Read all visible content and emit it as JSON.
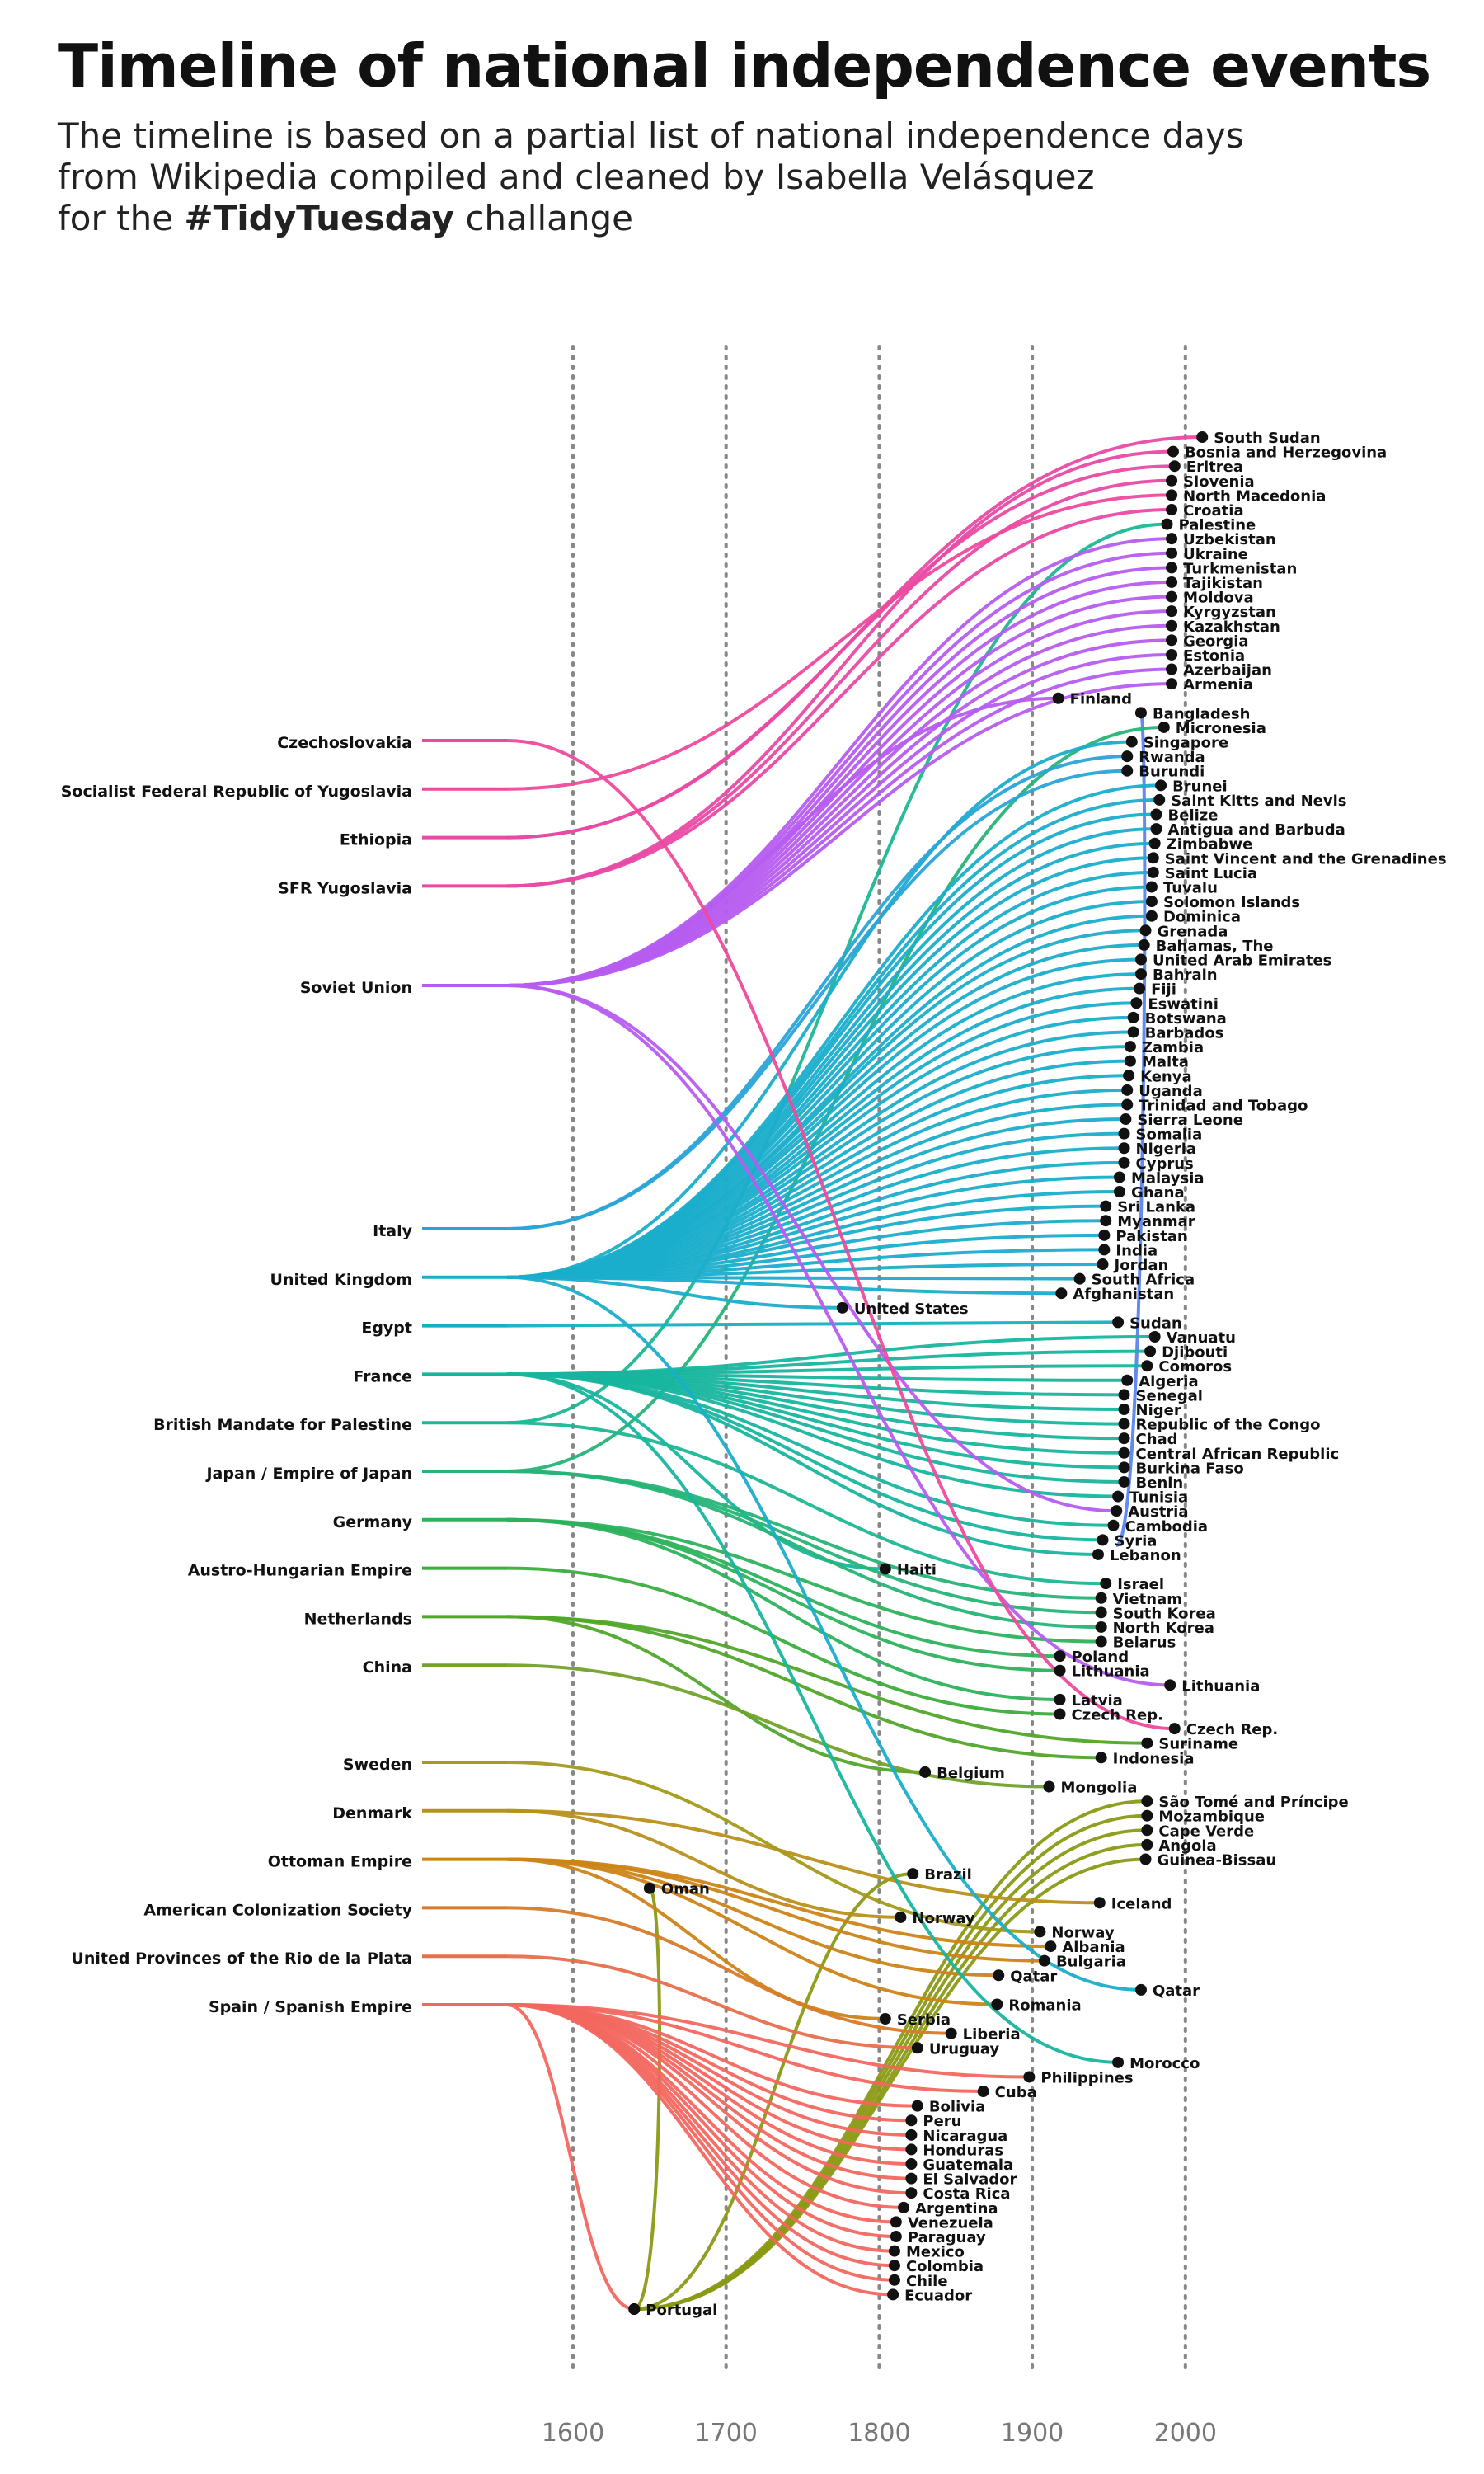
{
  "header": {
    "title": "Timeline of national independence events",
    "subtitle_lines": [
      "The timeline is based on a partial list of national independence days",
      "from Wikipedia compiled and cleaned by Isabella Velásquez",
      "for the ",
      "#TidyTuesday",
      " challange"
    ]
  },
  "chart_data": {
    "type": "line",
    "title": "Timeline of national independence events",
    "xlabel": "",
    "ylabel": "",
    "xlim": [
      1530,
      2060
    ],
    "x_ticks": [
      1600,
      1700,
      1800,
      1900,
      2000
    ],
    "grid": "dotted vertical at ticks",
    "colors": {
      "Czechoslovakia": "#ee4a9c",
      "Socialist Federal Republic of Yugoslavia": "#ee4a9c",
      "Ethiopia": "#e94aa4",
      "SFR Yugoslavia": "#e94aa4",
      "Soviet Union": "#b65cf0",
      "Italy": "#2aa4d8",
      "United Kingdom": "#1aaecb",
      "Egypt": "#14b2c0",
      "France": "#17b59e",
      "British Mandate for Palestine": "#1db793",
      "Japan / Empire of Japan": "#26b477",
      "Germany": "#2cb25c",
      "Austro-Hungarian Empire": "#3aae3c",
      "Netherlands": "#50a62a",
      "China": "#72a22a",
      "Sweden": "#a59a1a",
      "Denmark": "#b8901a",
      "Ottoman Empire": "#cc8418",
      "American Colonization Society": "#d97a28",
      "United Provinces of the Rio de la Plata": "#e66f4c",
      "Spain / Spanish Empire": "#f2675f",
      "Portugal": "#8a9a14",
      "Oman": "#8a9a14",
      "Finland": "#b65cf0",
      "Bangladesh": "#5b84ee",
      "Sudan": "#1aaecb",
      "Austria": "#5b84ee"
    },
    "origins": [
      "Czechoslovakia",
      "Socialist Federal Republic of Yugoslavia",
      "Ethiopia",
      "SFR Yugoslavia",
      "Soviet Union",
      "Italy",
      "United Kingdom",
      "Egypt",
      "France",
      "British Mandate for Palestine",
      "Japan / Empire of Japan",
      "Germany",
      "Austro-Hungarian Empire",
      "Netherlands",
      "China",
      "Sweden",
      "Denmark",
      "Ottoman Empire",
      "American Colonization Society",
      "United Provinces of the Rio de la Plata",
      "Spain / Spanish Empire"
    ],
    "points": [
      {
        "country": "South Sudan",
        "year": 2011,
        "from": "Ethiopia"
      },
      {
        "country": "Bosnia and Herzegovina",
        "year": 1992,
        "from": "SFR Yugoslavia"
      },
      {
        "country": "Eritrea",
        "year": 1993,
        "from": "Ethiopia"
      },
      {
        "country": "Slovenia",
        "year": 1991,
        "from": "SFR Yugoslavia"
      },
      {
        "country": "North Macedonia",
        "year": 1991,
        "from": "Socialist Federal Republic of Yugoslavia"
      },
      {
        "country": "Croatia",
        "year": 1991,
        "from": "SFR Yugoslavia"
      },
      {
        "country": "Palestine",
        "year": 1988,
        "from": "British Mandate for Palestine"
      },
      {
        "country": "Uzbekistan",
        "year": 1991,
        "from": "Soviet Union"
      },
      {
        "country": "Ukraine",
        "year": 1991,
        "from": "Soviet Union"
      },
      {
        "country": "Turkmenistan",
        "year": 1991,
        "from": "Soviet Union"
      },
      {
        "country": "Tajikistan",
        "year": 1991,
        "from": "Soviet Union"
      },
      {
        "country": "Moldova",
        "year": 1991,
        "from": "Soviet Union"
      },
      {
        "country": "Kyrgyzstan",
        "year": 1991,
        "from": "Soviet Union"
      },
      {
        "country": "Kazakhstan",
        "year": 1991,
        "from": "Soviet Union"
      },
      {
        "country": "Georgia",
        "year": 1991,
        "from": "Soviet Union"
      },
      {
        "country": "Estonia",
        "year": 1991,
        "from": "Soviet Union"
      },
      {
        "country": "Azerbaijan",
        "year": 1991,
        "from": "Soviet Union"
      },
      {
        "country": "Armenia",
        "year": 1991,
        "from": "Soviet Union"
      },
      {
        "country": "Finland",
        "year": 1917,
        "from": "Soviet Union"
      },
      {
        "country": "Bangladesh",
        "year": 1971,
        "from": "Austria"
      },
      {
        "country": "Micronesia",
        "year": 1986,
        "from": "Japan / Empire of Japan"
      },
      {
        "country": "Singapore",
        "year": 1965,
        "from": "United Kingdom"
      },
      {
        "country": "Rwanda",
        "year": 1962,
        "from": "Italy"
      },
      {
        "country": "Burundi",
        "year": 1962,
        "from": "Italy"
      },
      {
        "country": "Brunei",
        "year": 1984,
        "from": "United Kingdom"
      },
      {
        "country": "Saint Kitts and Nevis",
        "year": 1983,
        "from": "United Kingdom"
      },
      {
        "country": "Belize",
        "year": 1981,
        "from": "United Kingdom"
      },
      {
        "country": "Antigua and Barbuda",
        "year": 1981,
        "from": "United Kingdom"
      },
      {
        "country": "Zimbabwe",
        "year": 1980,
        "from": "United Kingdom"
      },
      {
        "country": "Saint Vincent and the Grenadines",
        "year": 1979,
        "from": "United Kingdom"
      },
      {
        "country": "Saint Lucia",
        "year": 1979,
        "from": "United Kingdom"
      },
      {
        "country": "Tuvalu",
        "year": 1978,
        "from": "United Kingdom"
      },
      {
        "country": "Solomon Islands",
        "year": 1978,
        "from": "United Kingdom"
      },
      {
        "country": "Dominica",
        "year": 1978,
        "from": "United Kingdom"
      },
      {
        "country": "Grenada",
        "year": 1974,
        "from": "United Kingdom"
      },
      {
        "country": "Bahamas, The",
        "year": 1973,
        "from": "United Kingdom"
      },
      {
        "country": "United Arab Emirates",
        "year": 1971,
        "from": "United Kingdom"
      },
      {
        "country": "Bahrain",
        "year": 1971,
        "from": "United Kingdom"
      },
      {
        "country": "Fiji",
        "year": 1970,
        "from": "United Kingdom"
      },
      {
        "country": "Eswatini",
        "year": 1968,
        "from": "United Kingdom"
      },
      {
        "country": "Botswana",
        "year": 1966,
        "from": "United Kingdom"
      },
      {
        "country": "Barbados",
        "year": 1966,
        "from": "United Kingdom"
      },
      {
        "country": "Zambia",
        "year": 1964,
        "from": "United Kingdom"
      },
      {
        "country": "Malta",
        "year": 1964,
        "from": "United Kingdom"
      },
      {
        "country": "Kenya",
        "year": 1963,
        "from": "United Kingdom"
      },
      {
        "country": "Uganda",
        "year": 1962,
        "from": "United Kingdom"
      },
      {
        "country": "Trinidad and Tobago",
        "year": 1962,
        "from": "United Kingdom"
      },
      {
        "country": "Sierra Leone",
        "year": 1961,
        "from": "United Kingdom"
      },
      {
        "country": "Somalia",
        "year": 1960,
        "from": "United Kingdom"
      },
      {
        "country": "Nigeria",
        "year": 1960,
        "from": "United Kingdom"
      },
      {
        "country": "Cyprus",
        "year": 1960,
        "from": "United Kingdom"
      },
      {
        "country": "Malaysia",
        "year": 1957,
        "from": "United Kingdom"
      },
      {
        "country": "Ghana",
        "year": 1957,
        "from": "United Kingdom"
      },
      {
        "country": "Sri Lanka",
        "year": 1948,
        "from": "United Kingdom"
      },
      {
        "country": "Myanmar",
        "year": 1948,
        "from": "United Kingdom"
      },
      {
        "country": "Pakistan",
        "year": 1947,
        "from": "United Kingdom"
      },
      {
        "country": "India",
        "year": 1947,
        "from": "United Kingdom"
      },
      {
        "country": "Jordan",
        "year": 1946,
        "from": "United Kingdom"
      },
      {
        "country": "South Africa",
        "year": 1931,
        "from": "United Kingdom"
      },
      {
        "country": "Afghanistan",
        "year": 1919,
        "from": "United Kingdom"
      },
      {
        "country": "United States",
        "year": 1776,
        "from": "United Kingdom"
      },
      {
        "country": "Sudan",
        "year": 1956,
        "from": "Egypt"
      },
      {
        "country": "Vanuatu",
        "year": 1980,
        "from": "France"
      },
      {
        "country": "Djibouti",
        "year": 1977,
        "from": "France"
      },
      {
        "country": "Comoros",
        "year": 1975,
        "from": "France"
      },
      {
        "country": "Algeria",
        "year": 1962,
        "from": "France"
      },
      {
        "country": "Senegal",
        "year": 1960,
        "from": "France"
      },
      {
        "country": "Niger",
        "year": 1960,
        "from": "France"
      },
      {
        "country": "Republic of the Congo",
        "year": 1960,
        "from": "France"
      },
      {
        "country": "Chad",
        "year": 1960,
        "from": "France"
      },
      {
        "country": "Central African Republic",
        "year": 1960,
        "from": "France"
      },
      {
        "country": "Burkina Faso",
        "year": 1960,
        "from": "France"
      },
      {
        "country": "Benin",
        "year": 1960,
        "from": "France"
      },
      {
        "country": "Tunisia",
        "year": 1956,
        "from": "France"
      },
      {
        "country": "Austria",
        "year": 1955,
        "from": "Soviet Union"
      },
      {
        "country": "Cambodia",
        "year": 1953,
        "from": "France"
      },
      {
        "country": "Syria",
        "year": 1946,
        "from": "France"
      },
      {
        "country": "Lebanon",
        "year": 1943,
        "from": "France"
      },
      {
        "country": "Haiti",
        "year": 1804,
        "from": "France"
      },
      {
        "country": "Israel",
        "year": 1948,
        "from": "British Mandate for Palestine"
      },
      {
        "country": "Vietnam",
        "year": 1945,
        "from": "Japan / Empire of Japan"
      },
      {
        "country": "South Korea",
        "year": 1945,
        "from": "Japan / Empire of Japan"
      },
      {
        "country": "North Korea",
        "year": 1945,
        "from": "Japan / Empire of Japan"
      },
      {
        "country": "Belarus",
        "year": 1945,
        "from": "Germany"
      },
      {
        "country": "Poland",
        "year": 1918,
        "from": "Germany"
      },
      {
        "country": "Lithuania",
        "year": 1918,
        "from": "Germany"
      },
      {
        "country": "Lithuania",
        "year": 1990,
        "from": "Soviet Union"
      },
      {
        "country": "Latvia",
        "year": 1918,
        "from": "Germany"
      },
      {
        "country": "Czech Rep.",
        "year": 1918,
        "from": "Austro-Hungarian Empire"
      },
      {
        "country": "Czech Rep.",
        "year": 1993,
        "from": "Czechoslovakia"
      },
      {
        "country": "Suriname",
        "year": 1975,
        "from": "Netherlands"
      },
      {
        "country": "Indonesia",
        "year": 1945,
        "from": "Netherlands"
      },
      {
        "country": "Belgium",
        "year": 1830,
        "from": "Netherlands"
      },
      {
        "country": "Mongolia",
        "year": 1911,
        "from": "China"
      },
      {
        "country": "São Tomé and Príncipe",
        "year": 1975,
        "from": "Portugal"
      },
      {
        "country": "Mozambique",
        "year": 1975,
        "from": "Portugal"
      },
      {
        "country": "Cape Verde",
        "year": 1975,
        "from": "Portugal"
      },
      {
        "country": "Angola",
        "year": 1975,
        "from": "Portugal"
      },
      {
        "country": "Guinea-Bissau",
        "year": 1974,
        "from": "Portugal"
      },
      {
        "country": "Brazil",
        "year": 1822,
        "from": "Portugal"
      },
      {
        "country": "Oman",
        "year": 1650,
        "from": "Portugal"
      },
      {
        "country": "Iceland",
        "year": 1944,
        "from": "Denmark"
      },
      {
        "country": "Norway",
        "year": 1814,
        "from": "Denmark"
      },
      {
        "country": "Norway",
        "year": 1905,
        "from": "Sweden"
      },
      {
        "country": "Albania",
        "year": 1912,
        "from": "Ottoman Empire"
      },
      {
        "country": "Bulgaria",
        "year": 1908,
        "from": "Ottoman Empire"
      },
      {
        "country": "Qatar",
        "year": 1878,
        "from": "Ottoman Empire"
      },
      {
        "country": "Qatar",
        "year": 1971,
        "from": "United Kingdom"
      },
      {
        "country": "Romania",
        "year": 1877,
        "from": "Ottoman Empire"
      },
      {
        "country": "Serbia",
        "year": 1804,
        "from": "Ottoman Empire"
      },
      {
        "country": "Liberia",
        "year": 1847,
        "from": "American Colonization Society"
      },
      {
        "country": "Uruguay",
        "year": 1825,
        "from": "United Provinces of the Rio de la Plata"
      },
      {
        "country": "Morocco",
        "year": 1956,
        "from": "France"
      },
      {
        "country": "Philippines",
        "year": 1898,
        "from": "Spain / Spanish Empire"
      },
      {
        "country": "Cuba",
        "year": 1868,
        "from": "Spain / Spanish Empire"
      },
      {
        "country": "Bolivia",
        "year": 1825,
        "from": "Spain / Spanish Empire"
      },
      {
        "country": "Peru",
        "year": 1821,
        "from": "Spain / Spanish Empire"
      },
      {
        "country": "Nicaragua",
        "year": 1821,
        "from": "Spain / Spanish Empire"
      },
      {
        "country": "Honduras",
        "year": 1821,
        "from": "Spain / Spanish Empire"
      },
      {
        "country": "Guatemala",
        "year": 1821,
        "from": "Spain / Spanish Empire"
      },
      {
        "country": "El Salvador",
        "year": 1821,
        "from": "Spain / Spanish Empire"
      },
      {
        "country": "Costa Rica",
        "year": 1821,
        "from": "Spain / Spanish Empire"
      },
      {
        "country": "Argentina",
        "year": 1816,
        "from": "Spain / Spanish Empire"
      },
      {
        "country": "Venezuela",
        "year": 1811,
        "from": "Spain / Spanish Empire"
      },
      {
        "country": "Paraguay",
        "year": 1811,
        "from": "Spain / Spanish Empire"
      },
      {
        "country": "Mexico",
        "year": 1810,
        "from": "Spain / Spanish Empire"
      },
      {
        "country": "Colombia",
        "year": 1810,
        "from": "Spain / Spanish Empire"
      },
      {
        "country": "Chile",
        "year": 1810,
        "from": "Spain / Spanish Empire"
      },
      {
        "country": "Ecuador",
        "year": 1809,
        "from": "Spain / Spanish Empire"
      },
      {
        "country": "Portugal",
        "year": 1640,
        "from": "Spain / Spanish Empire"
      }
    ]
  }
}
